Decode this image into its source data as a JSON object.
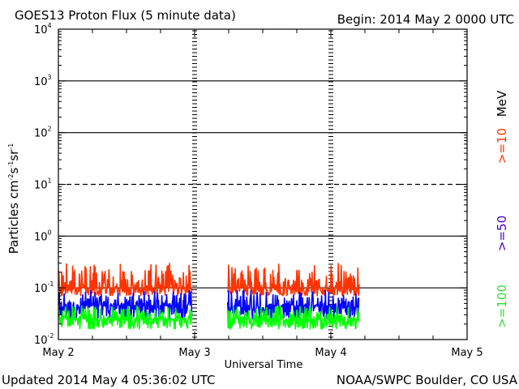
{
  "header": {
    "title": "GOES13 Proton Flux (5 minute data)",
    "begin": "Begin: 2014 May 2 0000 UTC"
  },
  "footer": {
    "updated": "Updated 2014 May  4 05:36:02 UTC",
    "source": "NOAA/SWPC Boulder, CO USA"
  },
  "chart_data": {
    "type": "line",
    "title": "GOES13 Proton Flux (5 minute data)",
    "xlabel": "Universal Time",
    "ylabel": "Particles cm-2s-1sr-1",
    "yscale": "log",
    "ylim": [
      0.01,
      10000
    ],
    "xlim": [
      0,
      3
    ],
    "x_units": "days since 2014 May 2 0000 UTC",
    "x_ticks": [
      {
        "value": 0,
        "label": "May 2"
      },
      {
        "value": 1,
        "label": "May 3"
      },
      {
        "value": 2,
        "label": "May 4"
      },
      {
        "value": 3,
        "label": "May 5"
      }
    ],
    "y_ticks": [
      {
        "exp": 4,
        "label": "10",
        "sup": "4"
      },
      {
        "exp": 3,
        "label": "10",
        "sup": "3"
      },
      {
        "exp": 2,
        "label": "10",
        "sup": "2"
      },
      {
        "exp": 1,
        "label": "10",
        "sup": "1"
      },
      {
        "exp": 0,
        "label": "10",
        "sup": "0"
      },
      {
        "exp": -1,
        "label": "10",
        "sup": "-1"
      },
      {
        "exp": -2,
        "label": "10",
        "sup": "-2"
      }
    ],
    "gridlines": [
      {
        "exp": 3,
        "style": "solid"
      },
      {
        "exp": 2,
        "style": "solid"
      },
      {
        "exp": 1,
        "style": "dashed"
      },
      {
        "exp": 0,
        "style": "solid"
      },
      {
        "exp": -1,
        "style": "solid"
      }
    ],
    "day_markers": [
      1,
      2
    ],
    "data_gaps": [
      [
        0.98,
        1.24
      ]
    ],
    "data_end": 2.21,
    "series": [
      {
        "name": ">=10 MeV",
        "color": "#ff3300",
        "base": 0.1,
        "spread": [
          0.07,
          0.3
        ]
      },
      {
        "name": ">=50",
        "color": "#0000ff",
        "base": 0.045,
        "spread": [
          0.025,
          0.09
        ]
      },
      {
        "name": ">=100",
        "color": "#00ff00",
        "base": 0.025,
        "spread": [
          0.016,
          0.045
        ]
      }
    ],
    "legend": {
      "position": "right",
      "entries": [
        {
          "text": ">=10",
          "color": "#ff3300"
        },
        {
          "text": "MeV",
          "color": "#000000"
        },
        {
          "text": ">=50",
          "color": "#4400cc"
        },
        {
          "text": ">=100",
          "color": "#33dd33"
        }
      ]
    }
  }
}
